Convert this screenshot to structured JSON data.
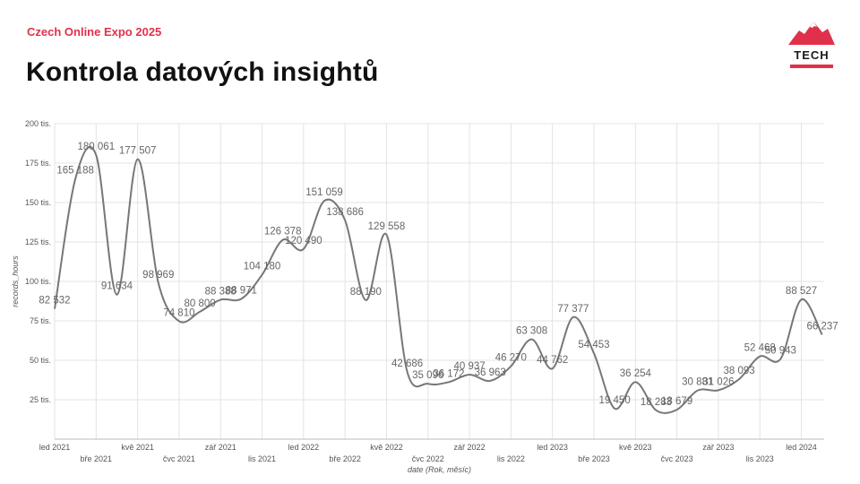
{
  "header": {
    "event": "Czech Online Expo 2025",
    "title": "Kontrola datových insightů"
  },
  "logo": {
    "text": "TECH",
    "colors": {
      "mountain": "#e0314b",
      "bar": "#e0314b"
    }
  },
  "chart_data": {
    "type": "line",
    "title": "",
    "xlabel": "date (Rok, měsíc)",
    "ylabel": "records_hours",
    "ylim": [
      0,
      200000
    ],
    "yticks": [
      {
        "v": 0,
        "label": ""
      },
      {
        "v": 25000,
        "label": "25 tis."
      },
      {
        "v": 50000,
        "label": "50 tis."
      },
      {
        "v": 75000,
        "label": "75 tis."
      },
      {
        "v": 100000,
        "label": "100 tis."
      },
      {
        "v": 125000,
        "label": "125 tis."
      },
      {
        "v": 150000,
        "label": "150 tis."
      },
      {
        "v": 175000,
        "label": "175 tis."
      },
      {
        "v": 200000,
        "label": "200 tis."
      }
    ],
    "xticks": [
      {
        "i": 0,
        "label": "led 2021",
        "row": 0
      },
      {
        "i": 1,
        "label": "bře 2021",
        "row": 1
      },
      {
        "i": 2,
        "label": "kvě 2021",
        "row": 0
      },
      {
        "i": 3,
        "label": "čvc 2021",
        "row": 1
      },
      {
        "i": 4,
        "label": "zář 2021",
        "row": 0
      },
      {
        "i": 5,
        "label": "lis 2021",
        "row": 1
      },
      {
        "i": 6,
        "label": "led 2022",
        "row": 0
      },
      {
        "i": 7,
        "label": "bře 2022",
        "row": 1
      },
      {
        "i": 8,
        "label": "kvě 2022",
        "row": 0
      },
      {
        "i": 9,
        "label": "čvc 2022",
        "row": 1
      },
      {
        "i": 10,
        "label": "zář 2022",
        "row": 0
      },
      {
        "i": 11,
        "label": "lis 2022",
        "row": 1
      },
      {
        "i": 12,
        "label": "led 2023",
        "row": 0
      },
      {
        "i": 13,
        "label": "bře 2023",
        "row": 1
      },
      {
        "i": 14,
        "label": "kvě 2023",
        "row": 0
      },
      {
        "i": 15,
        "label": "čvc 2023",
        "row": 1
      },
      {
        "i": 16,
        "label": "zář 2023",
        "row": 0
      },
      {
        "i": 17,
        "label": "lis 2023",
        "row": 1
      },
      {
        "i": 18,
        "label": "led 2024",
        "row": 0
      }
    ],
    "grid": true,
    "series": [
      {
        "color": "#777777",
        "points": [
          {
            "t": 0.0,
            "v": 82532,
            "label": "82 532"
          },
          {
            "t": 0.5,
            "v": 165188,
            "label": "165 188"
          },
          {
            "t": 1.0,
            "v": 180061,
            "label": "180 061"
          },
          {
            "t": 1.5,
            "v": 91634,
            "label": "91 634"
          },
          {
            "t": 2.0,
            "v": 177507,
            "label": "177 507"
          },
          {
            "t": 2.5,
            "v": 98969,
            "label": "98 969"
          },
          {
            "t": 3.0,
            "v": 74810,
            "label": "74 810"
          },
          {
            "t": 3.5,
            "v": 80800,
            "label": "80 800"
          },
          {
            "t": 4.0,
            "v": 88388,
            "label": "88 388"
          },
          {
            "t": 4.5,
            "v": 88971,
            "label": "88 971"
          },
          {
            "t": 5.0,
            "v": 104180,
            "label": "104 180"
          },
          {
            "t": 5.5,
            "v": 126378,
            "label": "126 378"
          },
          {
            "t": 6.0,
            "v": 120490,
            "label": "120 490"
          },
          {
            "t": 6.5,
            "v": 151059,
            "label": "151 059"
          },
          {
            "t": 7.0,
            "v": 138686,
            "label": "138 686"
          },
          {
            "t": 7.5,
            "v": 88190,
            "label": "88 190"
          },
          {
            "t": 8.0,
            "v": 129558,
            "label": "129 558"
          },
          {
            "t": 8.5,
            "v": 42686,
            "label": "42 686"
          },
          {
            "t": 9.0,
            "v": 35096,
            "label": "35 096"
          },
          {
            "t": 9.5,
            "v": 36172,
            "label": "36 172"
          },
          {
            "t": 10.0,
            "v": 40937,
            "label": "40 937"
          },
          {
            "t": 10.5,
            "v": 36963,
            "label": "36 963"
          },
          {
            "t": 11.0,
            "v": 46270,
            "label": "46 270"
          },
          {
            "t": 11.5,
            "v": 63308,
            "label": "63 308"
          },
          {
            "t": 12.0,
            "v": 44762,
            "label": "44 762"
          },
          {
            "t": 12.5,
            "v": 77377,
            "label": "77 377"
          },
          {
            "t": 13.0,
            "v": 54453,
            "label": "54 453"
          },
          {
            "t": 13.5,
            "v": 19450,
            "label": "19 450"
          },
          {
            "t": 14.0,
            "v": 36254,
            "label": "36 254"
          },
          {
            "t": 14.5,
            "v": 18283,
            "label": "18 283"
          },
          {
            "t": 15.0,
            "v": 18679,
            "label": "18 679"
          },
          {
            "t": 15.5,
            "v": 30881,
            "label": "30 881"
          },
          {
            "t": 16.0,
            "v": 31026,
            "label": "31 026"
          },
          {
            "t": 16.5,
            "v": 38093,
            "label": "38 093"
          },
          {
            "t": 17.0,
            "v": 52468,
            "label": "52 468"
          },
          {
            "t": 17.5,
            "v": 50943,
            "label": "50 943"
          },
          {
            "t": 18.0,
            "v": 88527,
            "label": "88 527"
          },
          {
            "t": 18.5,
            "v": 66237,
            "label": "66 237"
          }
        ]
      }
    ]
  }
}
